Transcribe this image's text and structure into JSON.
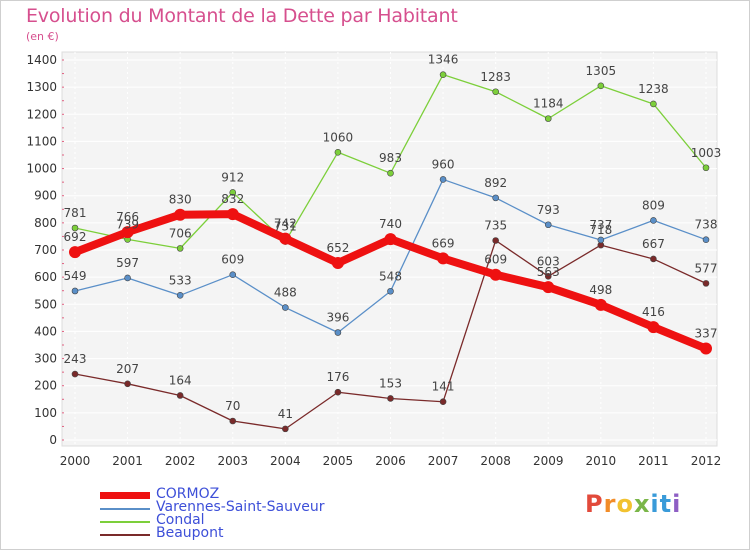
{
  "title": "Evolution du Montant de la Dette par Habitant",
  "unit": "(en €)",
  "logo": {
    "text": "Proxiti",
    "letters": [
      {
        "ch": "P",
        "color": "#e24a3b"
      },
      {
        "ch": "r",
        "color": "#f28c28"
      },
      {
        "ch": "o",
        "color": "#f2c230"
      },
      {
        "ch": "x",
        "color": "#7ab648"
      },
      {
        "ch": "i",
        "color": "#3a9bd9"
      },
      {
        "ch": "t",
        "color": "#3a9bd9"
      },
      {
        "ch": "i",
        "color": "#8e5fc4"
      }
    ]
  },
  "chart_data": {
    "type": "line",
    "title": "Evolution du Montant de la Dette par Habitant",
    "ylabel": "(en €)",
    "xlabel": "",
    "ylim": [
      0,
      1400
    ],
    "yticks": [
      0,
      100,
      200,
      300,
      400,
      500,
      600,
      700,
      800,
      900,
      1000,
      1100,
      1200,
      1300,
      1400
    ],
    "grid": true,
    "legend_position": "bottom-left",
    "x": [
      "2000",
      "2001",
      "2002",
      "2003",
      "2004",
      "2005",
      "2006",
      "2007",
      "2008",
      "2009",
      "2010",
      "2011",
      "2012"
    ],
    "series": [
      {
        "name": "CORMOZ",
        "color": "#ee1111",
        "values": [
          692,
          766,
          830,
          832,
          742,
          652,
          740,
          669,
          609,
          563,
          498,
          416,
          337
        ]
      },
      {
        "name": "Varennes-Saint-Sauveur",
        "color": "#5a8fc8",
        "values": [
          549,
          597,
          533,
          609,
          488,
          396,
          548,
          960,
          892,
          793,
          737,
          809,
          738
        ]
      },
      {
        "name": "Condal",
        "color": "#7ccf3a",
        "values": [
          781,
          739,
          706,
          912,
          731,
          1060,
          983,
          1346,
          1283,
          1184,
          1305,
          1238,
          1003
        ]
      },
      {
        "name": "Beaupont",
        "color": "#7a2a2a",
        "values": [
          243,
          207,
          164,
          70,
          41,
          176,
          153,
          141,
          735,
          603,
          718,
          667,
          577
        ]
      }
    ]
  }
}
